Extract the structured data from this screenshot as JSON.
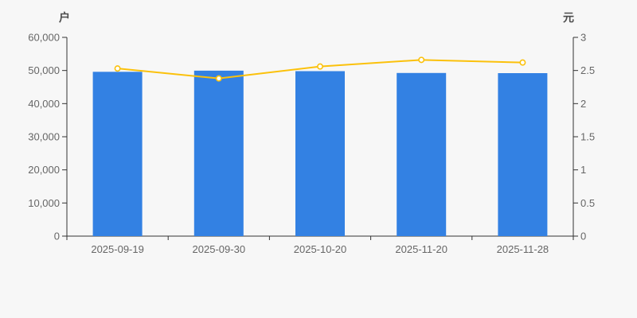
{
  "chart_data": {
    "type": "bar",
    "title": "",
    "categories": [
      "2025-09-19",
      "2025-09-30",
      "2025-10-20",
      "2025-11-20",
      "2025-11-28"
    ],
    "series": [
      {
        "name": "户",
        "type": "bar",
        "yaxis": "left",
        "values": [
          49600,
          49950,
          49800,
          49250,
          49200
        ],
        "color": "#3381e3"
      },
      {
        "name": "元",
        "type": "line",
        "yaxis": "right",
        "values": [
          2.53,
          2.38,
          2.56,
          2.66,
          2.62
        ],
        "color": "#fbc10b",
        "marker_fill": "#ffffff"
      }
    ],
    "left_axis": {
      "title": "户",
      "min": 0,
      "max": 60000,
      "step": 10000,
      "tick_labels": [
        "0",
        "10,000",
        "20,000",
        "30,000",
        "40,000",
        "50,000",
        "60,000"
      ]
    },
    "right_axis": {
      "title": "元",
      "min": 0,
      "max": 3,
      "step": 0.5,
      "tick_labels": [
        "0",
        "0.5",
        "1",
        "1.5",
        "2",
        "2.5",
        "3"
      ]
    },
    "legend_position": "none",
    "grid": false,
    "background": "#f7f7f7",
    "axis_color": "#333333",
    "label_color": "#666666",
    "title_color": "#4c4c4c"
  }
}
